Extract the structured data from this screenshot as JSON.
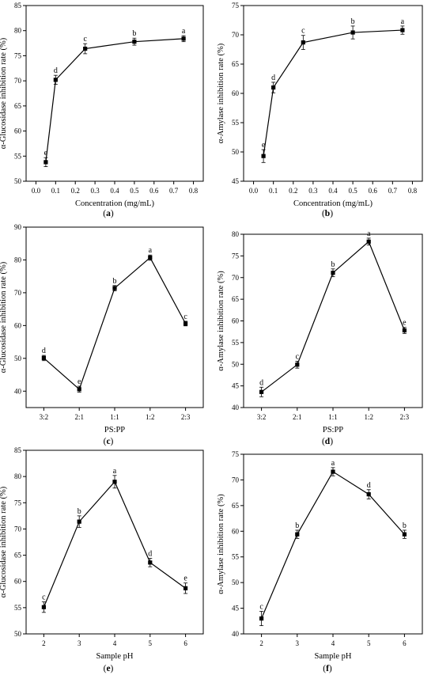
{
  "chart_data": [
    {
      "type": "line",
      "panel_label": "a",
      "xlabel": "Concentration (mg/mL)",
      "ylabel": "α-Glucosidase inhibition rate (%)",
      "xlim": [
        -0.05,
        0.85
      ],
      "ylim": [
        50,
        85
      ],
      "xticks": [
        0.0,
        0.1,
        0.2,
        0.3,
        0.4,
        0.5,
        0.6,
        0.7,
        0.8
      ],
      "xtick_labels": [
        "0.0",
        "0.1",
        "0.2",
        "0.3",
        "0.4",
        "0.5",
        "0.6",
        "0.7",
        "0.8"
      ],
      "yticks": [
        50,
        55,
        60,
        65,
        70,
        75,
        80,
        85
      ],
      "ytick_labels": [
        "50",
        "55",
        "60",
        "65",
        "70",
        "75",
        "80",
        "85"
      ],
      "x": [
        0.05,
        0.1,
        0.25,
        0.5,
        0.75
      ],
      "values": [
        53.8,
        70.2,
        76.4,
        77.8,
        78.4
      ],
      "errors": [
        0.9,
        0.9,
        1.0,
        0.7,
        0.6
      ],
      "letters": [
        "e",
        "d",
        "c",
        "b",
        "a"
      ]
    },
    {
      "type": "line",
      "panel_label": "b",
      "xlabel": "Concentration (mg/mL)",
      "ylabel": "α-Amylase inhibition rate (%)",
      "xlim": [
        -0.05,
        0.85
      ],
      "ylim": [
        45,
        75
      ],
      "xticks": [
        0.0,
        0.1,
        0.2,
        0.3,
        0.4,
        0.5,
        0.6,
        0.7,
        0.8
      ],
      "xtick_labels": [
        "0.0",
        "0.1",
        "0.2",
        "0.3",
        "0.4",
        "0.5",
        "0.6",
        "0.7",
        "0.8"
      ],
      "yticks": [
        45,
        50,
        55,
        60,
        65,
        70,
        75
      ],
      "ytick_labels": [
        "45",
        "50",
        "55",
        "60",
        "65",
        "70",
        "75"
      ],
      "x": [
        0.05,
        0.1,
        0.25,
        0.5,
        0.75
      ],
      "values": [
        49.3,
        61.0,
        68.7,
        70.4,
        70.8
      ],
      "errors": [
        1.1,
        0.9,
        1.2,
        1.1,
        0.7
      ],
      "letters": [
        "e",
        "d",
        "c",
        "b",
        "a"
      ]
    },
    {
      "type": "line",
      "panel_label": "c",
      "xlabel": "PS:PP",
      "ylabel": "α-Glucosidase inhibition rate (%)",
      "xlim": [
        -0.5,
        4.5
      ],
      "ylim": [
        35,
        90
      ],
      "categories": [
        "3:2",
        "2:1",
        "1:1",
        "1:2",
        "2:3"
      ],
      "yticks": [
        40,
        50,
        60,
        70,
        80,
        90
      ],
      "ytick_labels": [
        "40",
        "50",
        "60",
        "70",
        "80",
        "90"
      ],
      "values": [
        50.1,
        40.6,
        71.4,
        80.7,
        60.6
      ],
      "errors": [
        0.8,
        0.9,
        0.8,
        0.8,
        0.7
      ],
      "letters": [
        "d",
        "e",
        "b",
        "a",
        "c"
      ]
    },
    {
      "type": "line",
      "panel_label": "d",
      "xlabel": "PS:PP",
      "ylabel": "α-Amylase inhibition rate (%)",
      "xlim": [
        -0.5,
        4.5
      ],
      "ylim": [
        40,
        80
      ],
      "categories": [
        "3:2",
        "2:1",
        "1:1",
        "1:2",
        "2:3"
      ],
      "yticks": [
        40,
        45,
        50,
        55,
        60,
        65,
        70,
        75,
        80
      ],
      "ytick_labels": [
        "40",
        "45",
        "50",
        "55",
        "60",
        "65",
        "70",
        "75",
        "80"
      ],
      "values": [
        43.6,
        49.9,
        71.1,
        78.3,
        57.8
      ],
      "errors": [
        1.1,
        0.8,
        0.9,
        0.8,
        0.7
      ],
      "letters": [
        "d",
        "c",
        "b",
        "a",
        "e"
      ]
    },
    {
      "type": "line",
      "panel_label": "e",
      "xlabel": "Sample pH",
      "ylabel": "α-Glucosidase inhibition rate (%)",
      "xlim": [
        1.5,
        6.5
      ],
      "ylim": [
        50,
        85
      ],
      "xticks": [
        2,
        3,
        4,
        5,
        6
      ],
      "xtick_labels": [
        "2",
        "3",
        "4",
        "5",
        "6"
      ],
      "yticks": [
        50,
        55,
        60,
        65,
        70,
        75,
        80,
        85
      ],
      "ytick_labels": [
        "50",
        "55",
        "60",
        "65",
        "70",
        "75",
        "80",
        "85"
      ],
      "x": [
        2,
        3,
        4,
        5,
        6
      ],
      "values": [
        55.1,
        71.4,
        79.0,
        63.6,
        58.7
      ],
      "errors": [
        1.0,
        1.1,
        1.2,
        0.8,
        1.0
      ],
      "letters": [
        "c",
        "b",
        "a",
        "d",
        "e"
      ]
    },
    {
      "type": "line",
      "panel_label": "f",
      "xlabel": "Sample pH",
      "ylabel": "α-Amylase inhibition rate (%)",
      "xlim": [
        1.5,
        6.5
      ],
      "ylim": [
        40,
        75
      ],
      "xticks": [
        2,
        3,
        4,
        5,
        6
      ],
      "xtick_labels": [
        "2",
        "3",
        "4",
        "5",
        "6"
      ],
      "yticks": [
        40,
        45,
        50,
        55,
        60,
        65,
        70,
        75
      ],
      "ytick_labels": [
        "40",
        "45",
        "50",
        "55",
        "60",
        "65",
        "70",
        "75"
      ],
      "x": [
        2,
        3,
        4,
        5,
        6
      ],
      "values": [
        43.0,
        59.4,
        71.6,
        67.2,
        59.4
      ],
      "errors": [
        1.4,
        0.8,
        0.8,
        0.9,
        0.8
      ],
      "letters": [
        "c",
        "b",
        "a",
        "d",
        "b"
      ]
    }
  ]
}
